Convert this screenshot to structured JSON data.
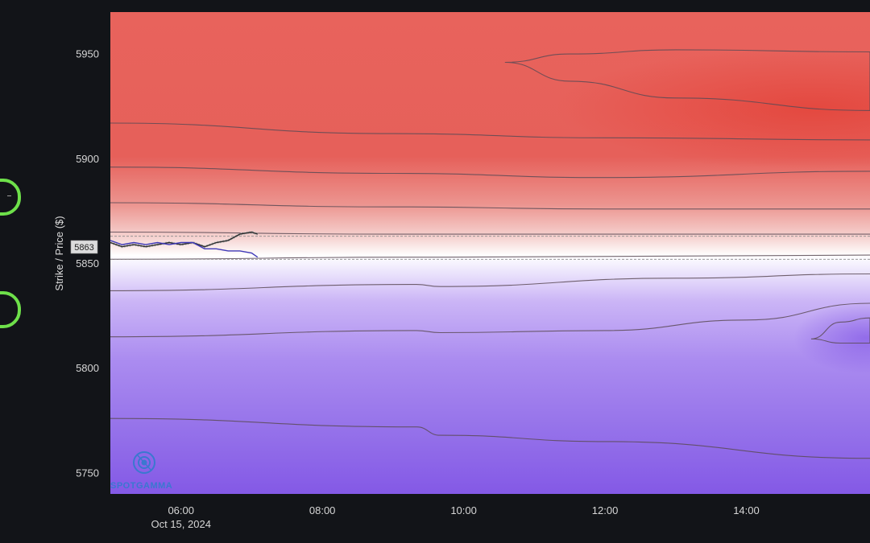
{
  "colors": {
    "background": "#121418",
    "positive": "#e5483c",
    "negative": "#8459e6",
    "contour": "#5a4a55",
    "price_line": "#2d2d2d",
    "secondary_line": "#3f39b8",
    "control_outline": "#6ee04a"
  },
  "side_controls": [
    {
      "name": "side-control-upper",
      "interactable": true
    },
    {
      "name": "side-control-lower",
      "interactable": true
    }
  ],
  "chart_data": {
    "type": "heatmap",
    "ylabel": "Strike / Price ($)",
    "ylim": [
      5740,
      5970
    ],
    "xlim": [
      "05:00",
      "15:45"
    ],
    "y_ticks": [
      5750,
      5800,
      5850,
      5900,
      5950
    ],
    "x_ticks": [
      {
        "time": "06:00",
        "label": "06:00",
        "sublabel": "Oct 15, 2024"
      },
      {
        "time": "08:00",
        "label": "08:00"
      },
      {
        "time": "10:00",
        "label": "10:00"
      },
      {
        "time": "12:00",
        "label": "12:00"
      },
      {
        "time": "14:00",
        "label": "14:00"
      }
    ],
    "current_price_label": "5863",
    "reference_levels": [
      5863,
      5852
    ],
    "color_scale": {
      "positive_color": "#e5483c",
      "negative_color": "#8459e6",
      "neutral_level": 5864
    },
    "contour_levels": [
      {
        "points": [
          [
            "05:00",
            5917
          ],
          [
            "09:00",
            5912
          ],
          [
            "12:00",
            5910
          ],
          [
            "15:45",
            5909
          ]
        ]
      },
      {
        "points": [
          [
            "05:00",
            5896
          ],
          [
            "09:00",
            5893
          ],
          [
            "12:00",
            5891
          ],
          [
            "15:45",
            5894
          ]
        ]
      },
      {
        "points": [
          [
            "05:00",
            5879
          ],
          [
            "09:00",
            5877
          ],
          [
            "12:00",
            5876
          ],
          [
            "15:45",
            5876
          ]
        ]
      },
      {
        "points": [
          [
            "05:00",
            5865
          ],
          [
            "09:00",
            5864
          ],
          [
            "12:00",
            5864
          ],
          [
            "15:45",
            5864
          ]
        ]
      },
      {
        "points": [
          [
            "05:00",
            5852
          ],
          [
            "09:20",
            5853
          ],
          [
            "09:40",
            5853
          ],
          [
            "15:45",
            5854
          ]
        ]
      },
      {
        "points": [
          [
            "05:00",
            5837
          ],
          [
            "09:20",
            5840
          ],
          [
            "09:40",
            5839
          ],
          [
            "13:00",
            5843
          ],
          [
            "15:45",
            5845
          ]
        ]
      },
      {
        "points": [
          [
            "05:00",
            5815
          ],
          [
            "09:20",
            5818
          ],
          [
            "09:40",
            5817
          ],
          [
            "12:00",
            5818
          ],
          [
            "14:00",
            5823
          ],
          [
            "15:45",
            5831
          ]
        ]
      },
      {
        "points": [
          [
            "05:00",
            5776
          ],
          [
            "09:20",
            5772
          ],
          [
            "09:40",
            5768
          ],
          [
            "12:00",
            5765
          ],
          [
            "15:45",
            5757
          ]
        ]
      }
    ],
    "closed_contours": [
      {
        "points": [
          [
            "10:35",
            5946
          ],
          [
            "11:30",
            5950
          ],
          [
            "13:00",
            5952
          ],
          [
            "15:45",
            5951
          ],
          [
            "15:45",
            5923
          ],
          [
            "13:00",
            5929
          ],
          [
            "11:30",
            5937
          ],
          [
            "10:35",
            5946
          ]
        ]
      },
      {
        "points": [
          [
            "14:55",
            5814
          ],
          [
            "15:20",
            5822
          ],
          [
            "15:45",
            5824
          ],
          [
            "15:45",
            5812
          ],
          [
            "15:20",
            5812
          ],
          [
            "14:55",
            5814
          ]
        ]
      }
    ],
    "series": [
      {
        "name": "",
        "color": "#2d2d2d",
        "values": [
          [
            "05:00",
            5860
          ],
          [
            "05:10",
            5858
          ],
          [
            "05:20",
            5859
          ],
          [
            "05:30",
            5858
          ],
          [
            "05:40",
            5859
          ],
          [
            "05:50",
            5860
          ],
          [
            "06:00",
            5859
          ],
          [
            "06:10",
            5860
          ],
          [
            "06:20",
            5858
          ],
          [
            "06:30",
            5860
          ],
          [
            "06:40",
            5861
          ],
          [
            "06:50",
            5864
          ],
          [
            "07:00",
            5865
          ],
          [
            "07:05",
            5864
          ]
        ]
      },
      {
        "name": "",
        "color": "#3f39b8",
        "values": [
          [
            "05:00",
            5861
          ],
          [
            "05:10",
            5859
          ],
          [
            "05:20",
            5860
          ],
          [
            "05:30",
            5859
          ],
          [
            "05:40",
            5860
          ],
          [
            "05:50",
            5859
          ],
          [
            "06:00",
            5860
          ],
          [
            "06:10",
            5860
          ],
          [
            "06:20",
            5857
          ],
          [
            "06:30",
            5857
          ],
          [
            "06:40",
            5856
          ],
          [
            "06:50",
            5856
          ],
          [
            "07:00",
            5855
          ],
          [
            "07:05",
            5853
          ]
        ]
      }
    ]
  },
  "branding": {
    "logo_text": "SPOTGAMMA"
  }
}
